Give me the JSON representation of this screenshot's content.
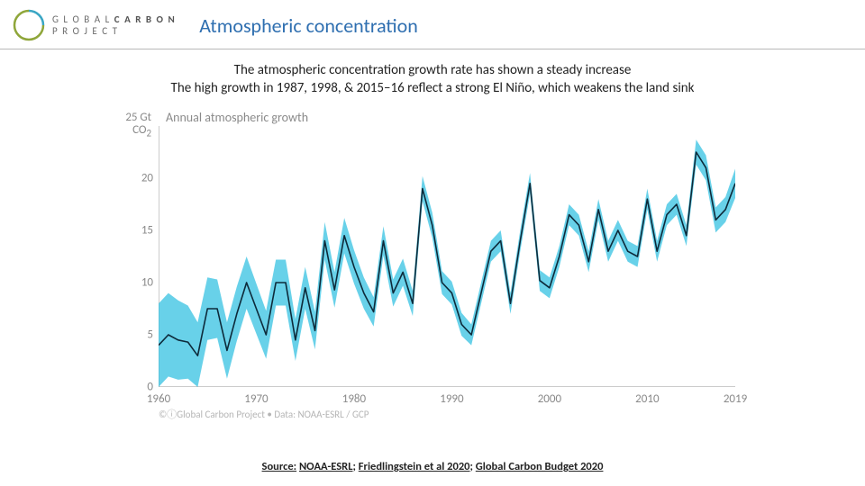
{
  "header": {
    "logo_prefix": "G L O B A L",
    "logo_mid": "C A R B O N",
    "logo_suffix": "P R O J E C T",
    "title": "Atmospheric concentration"
  },
  "subtitle_line1": "The atmospheric concentration growth rate has shown a steady increase",
  "subtitle_line2": "The high growth in 1987, 1998, & 2015–16 reflect a strong El Niño, which weakens the land sink",
  "chart": {
    "type": "line",
    "chart_title": "Annual atmospheric growth",
    "y_unit_line1": "25 Gt",
    "y_unit_line2": "CO",
    "y_unit_sub": "2",
    "xlim": [
      1960,
      2019
    ],
    "ylim": [
      0,
      25
    ],
    "yticks": [
      0,
      5,
      10,
      15,
      20
    ],
    "xticks": [
      1960,
      1970,
      1980,
      1990,
      2000,
      2010,
      2019
    ],
    "axis_color": "#9a9a9a",
    "tick_color": "#8a8a8a",
    "tick_fontsize": 13,
    "line_color": "#0d2a3a",
    "line_width": 1.6,
    "band_color": "#35c2e1",
    "band_opacity": 0.75,
    "background_color": "#ffffff",
    "years": [
      1960,
      1961,
      1962,
      1963,
      1964,
      1965,
      1966,
      1967,
      1968,
      1969,
      1970,
      1971,
      1972,
      1973,
      1974,
      1975,
      1976,
      1977,
      1978,
      1979,
      1980,
      1981,
      1982,
      1983,
      1984,
      1985,
      1986,
      1987,
      1988,
      1989,
      1990,
      1991,
      1992,
      1993,
      1994,
      1995,
      1996,
      1997,
      1998,
      1999,
      2000,
      2001,
      2002,
      2003,
      2004,
      2005,
      2006,
      2007,
      2008,
      2009,
      2010,
      2011,
      2012,
      2013,
      2014,
      2015,
      2016,
      2017,
      2018,
      2019
    ],
    "values": [
      4.0,
      5.0,
      4.5,
      4.3,
      3.0,
      7.5,
      7.5,
      3.5,
      7.0,
      10.0,
      7.5,
      5.0,
      10.0,
      10.0,
      4.5,
      9.5,
      5.4,
      14.0,
      9.3,
      14.5,
      11.5,
      9.0,
      7.2,
      14.0,
      9.0,
      11.0,
      8.0,
      19.0,
      15.5,
      10.0,
      9.0,
      6.0,
      5.0,
      9.0,
      13.0,
      14.0,
      8.0,
      14.0,
      19.5,
      10.2,
      9.5,
      12.5,
      16.5,
      15.5,
      12.0,
      17.0,
      13.0,
      15.0,
      13.0,
      12.5,
      18.0,
      13.0,
      16.5,
      17.5,
      14.5,
      22.5,
      21.0,
      16.0,
      17.0,
      19.5
    ],
    "band_half": [
      4.0,
      4.0,
      3.8,
      3.5,
      3.2,
      3.0,
      2.8,
      2.7,
      2.6,
      2.5,
      2.4,
      2.3,
      2.2,
      2.2,
      2.0,
      2.0,
      1.8,
      1.8,
      1.7,
      1.7,
      1.6,
      1.5,
      1.4,
      1.4,
      1.3,
      1.3,
      1.2,
      1.2,
      1.2,
      1.1,
      1.1,
      1.1,
      1.0,
      1.0,
      1.0,
      1.0,
      1.0,
      1.0,
      1.0,
      1.0,
      1.0,
      1.0,
      1.0,
      1.0,
      1.0,
      1.0,
      1.0,
      1.0,
      1.0,
      1.0,
      1.0,
      1.0,
      1.0,
      1.0,
      1.0,
      1.2,
      1.2,
      1.2,
      1.2,
      1.4
    ]
  },
  "attribution": "©ⓘGlobal Carbon Project  •  Data: NOAA-ESRL / GCP",
  "source_prefix": "Source:",
  "source_1": "NOAA-ESRL",
  "source_2": "Friedlingstein et al 2020",
  "source_3": "Global Carbon Budget 2020"
}
